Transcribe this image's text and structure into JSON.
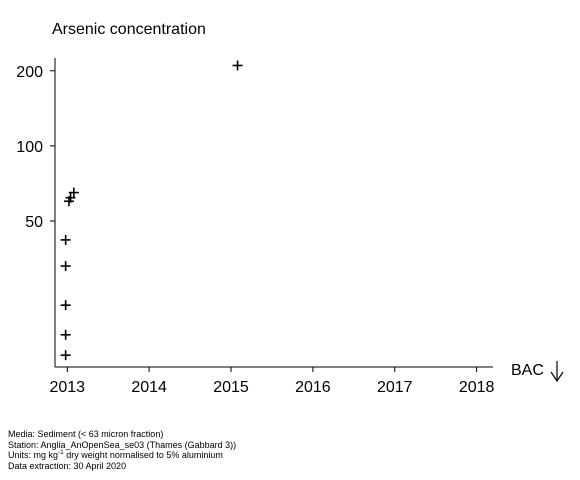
{
  "chart_data": {
    "type": "scatter",
    "title": "Arsenic concentration",
    "xlabel": "",
    "ylabel": "",
    "x_ticks": [
      "2013",
      "2014",
      "2015",
      "2016",
      "2017",
      "2018"
    ],
    "y_ticks": [
      "50",
      "100",
      "200"
    ],
    "y_scale": "log",
    "xlim": [
      2012.85,
      2018.2
    ],
    "ylim": [
      13,
      225
    ],
    "grid": false,
    "marker": "+",
    "marker_color": "#000000",
    "points": [
      {
        "x": 2012.98,
        "y": 14.5
      },
      {
        "x": 2012.98,
        "y": 17.5
      },
      {
        "x": 2012.98,
        "y": 23
      },
      {
        "x": 2012.98,
        "y": 33
      },
      {
        "x": 2012.98,
        "y": 42
      },
      {
        "x": 2013.02,
        "y": 60
      },
      {
        "x": 2013.04,
        "y": 62
      },
      {
        "x": 2013.08,
        "y": 65
      },
      {
        "x": 2015.08,
        "y": 210
      }
    ],
    "annotation": {
      "label": "BAC",
      "arrow": "down"
    }
  },
  "footer": {
    "media": "Media: Sediment (< 63 micron fraction)",
    "station": "Station: Anglia_AnOpenSea_se03 (Thames (Gabbard 3))",
    "units_prefix": "Units:  mg kg",
    "units_sup": "-1",
    "units_suffix": " dry weight normalised to 5% aluminium",
    "extraction": "Data extraction: 30 April 2020"
  }
}
